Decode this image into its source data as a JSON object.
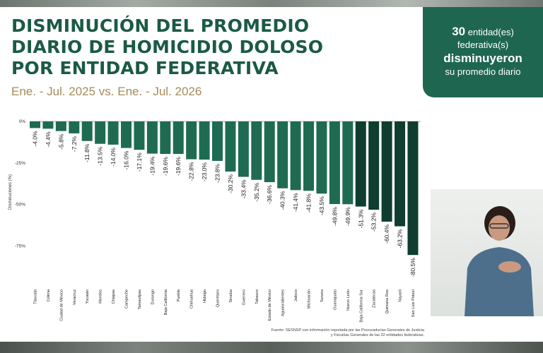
{
  "header": {
    "title_lines": [
      "DISMINUCIÓN DEL PROMEDIO",
      "DIARIO DE HOMICIDIO DOLOSO",
      "POR ENTIDAD FEDERATIVA"
    ],
    "subtitle": "Ene. - Jul. 2025 vs. Ene. - Jul. 2026"
  },
  "badge": {
    "count": "30",
    "line1_rest": "entidad(es)",
    "line2": "federativa(s)",
    "line3": "disminuyeron",
    "line4": "su promedio diario"
  },
  "source": {
    "text": "Fuente: SESNSP con información reportada por las Procuradurías Generales de Justicia y Fiscalías Generales de las 32 entidades federativas."
  },
  "chart_data": {
    "type": "bar",
    "ylabel": "Disminuciones (%)",
    "yticks": [
      "0%",
      "-25%",
      "-50%",
      "-75%"
    ],
    "ytick_values": [
      0,
      -25,
      -50,
      -75
    ],
    "ylim": [
      -85,
      0
    ],
    "grid": false,
    "categories": [
      "Tlaxcala",
      "Colima",
      "Ciudad de México",
      "Veracruz",
      "Yucatán",
      "Morelos",
      "Chiapas",
      "Campeche",
      "Tamaulipas",
      "Durango",
      "Baja California",
      "Puebla",
      "Chihuahua",
      "Hidalgo",
      "Querétaro",
      "Sinaloa",
      "Guerrero",
      "Tabasco",
      "Estado de México",
      "Aguascalientes",
      "Jalisco",
      "Michoacán",
      "Sonora",
      "Guanajuato",
      "Nuevo León",
      "Baja California Sur",
      "Zacatecas",
      "Quintana Roo",
      "Nayarit",
      "San Luis Potosí"
    ],
    "values": [
      -4.0,
      -4.4,
      -5.8,
      -7.2,
      -11.8,
      -13.5,
      -14.0,
      -16.0,
      -17.1,
      -19.4,
      -19.6,
      -19.6,
      -22.8,
      -23.0,
      -23.8,
      -30.2,
      -33.4,
      -35.2,
      -36.6,
      -40.3,
      -41.4,
      -41.8,
      -43.5,
      -49.8,
      -49.9,
      -51.3,
      -53.2,
      -60.4,
      -63.2,
      -80.5
    ],
    "labels": [
      "-4.0%",
      "-4.4%",
      "-5.8%",
      "-7.2%",
      "-11.8%",
      "-13.5%",
      "-14.0%",
      "-16.0%",
      "-17.1%",
      "-19.4%",
      "-19.6%",
      "-19.6%",
      "-22.8%",
      "-23.0%",
      "-23.8%",
      "-30.2%",
      "-33.4%",
      "-35.2%",
      "-36.6%",
      "-40.3%",
      "-41.4%",
      "-41.8%",
      "-43.5%",
      "-49.8%",
      "-49.9%",
      "-51.3%",
      "-53.2%",
      "-60.4%",
      "-63.2%",
      "-80.5%"
    ],
    "colors": {
      "light_bar": "#1f6b52",
      "dark_bar": "#0f3d2f",
      "dark_from_index": 25,
      "axis": "#444444",
      "text": "#333333"
    }
  }
}
